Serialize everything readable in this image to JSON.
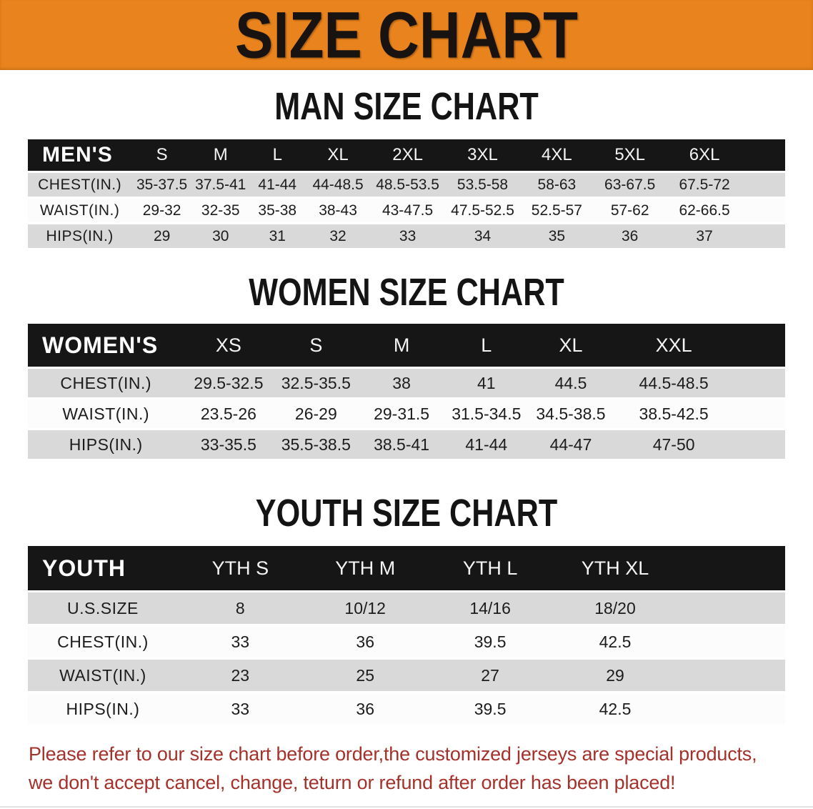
{
  "banner": {
    "title": "SIZE CHART"
  },
  "colors": {
    "banner_bg": "#E8831D",
    "header_bar": "#161616",
    "row_shade": "#D9D9D9",
    "row_light": "#FCFCFC",
    "note_text": "#A5312B",
    "title_text": "#141414"
  },
  "sections": [
    {
      "title": "MAN SIZE CHART",
      "group_label": "MEN'S",
      "columns": [
        "S",
        "M",
        "L",
        "XL",
        "2XL",
        "3XL",
        "4XL",
        "5XL",
        "6XL"
      ],
      "rows": [
        {
          "label": "CHEST(IN.)",
          "values": [
            "35-37.5",
            "37.5-41",
            "41-44",
            "44-48.5",
            "48.5-53.5",
            "53.5-58",
            "58-63",
            "63-67.5",
            "67.5-72"
          ]
        },
        {
          "label": "WAIST(IN.)",
          "values": [
            "29-32",
            "32-35",
            "35-38",
            "38-43",
            "43-47.5",
            "47.5-52.5",
            "52.5-57",
            "57-62",
            "62-66.5"
          ]
        },
        {
          "label": "HIPS(IN.)",
          "values": [
            "29",
            "30",
            "31",
            "32",
            "33",
            "34",
            "35",
            "36",
            "37"
          ]
        }
      ]
    },
    {
      "title": "WOMEN SIZE CHART",
      "group_label": "WOMEN'S",
      "columns": [
        "XS",
        "S",
        "M",
        "L",
        "XL",
        "XXL"
      ],
      "rows": [
        {
          "label": "CHEST(IN.)",
          "values": [
            "29.5-32.5",
            "32.5-35.5",
            "38",
            "41",
            "44.5",
            "44.5-48.5"
          ]
        },
        {
          "label": "WAIST(IN.)",
          "values": [
            "23.5-26",
            "26-29",
            "29-31.5",
            "31.5-34.5",
            "34.5-38.5",
            "38.5-42.5"
          ]
        },
        {
          "label": "HIPS(IN.)",
          "values": [
            "33-35.5",
            "35.5-38.5",
            "38.5-41",
            "41-44",
            "44-47",
            "47-50"
          ]
        }
      ]
    },
    {
      "title": "YOUTH SIZE CHART",
      "group_label": "YOUTH",
      "columns": [
        "YTH S",
        "YTH M",
        "YTH L",
        "YTH XL"
      ],
      "rows": [
        {
          "label": "U.S.SIZE",
          "values": [
            "8",
            "10/12",
            "14/16",
            "18/20"
          ]
        },
        {
          "label": "CHEST(IN.)",
          "values": [
            "33",
            "36",
            "39.5",
            "42.5"
          ]
        },
        {
          "label": "WAIST(IN.)",
          "values": [
            "23",
            "25",
            "27",
            "29"
          ]
        },
        {
          "label": "HIPS(IN.)",
          "values": [
            "33",
            "36",
            "39.5",
            "42.5"
          ]
        }
      ]
    }
  ],
  "note": {
    "line1": "Please refer to our size chart before order,the customized jerseys are special products,",
    "line2": "we don't accept cancel, change, teturn or refund after order has been placed!"
  }
}
